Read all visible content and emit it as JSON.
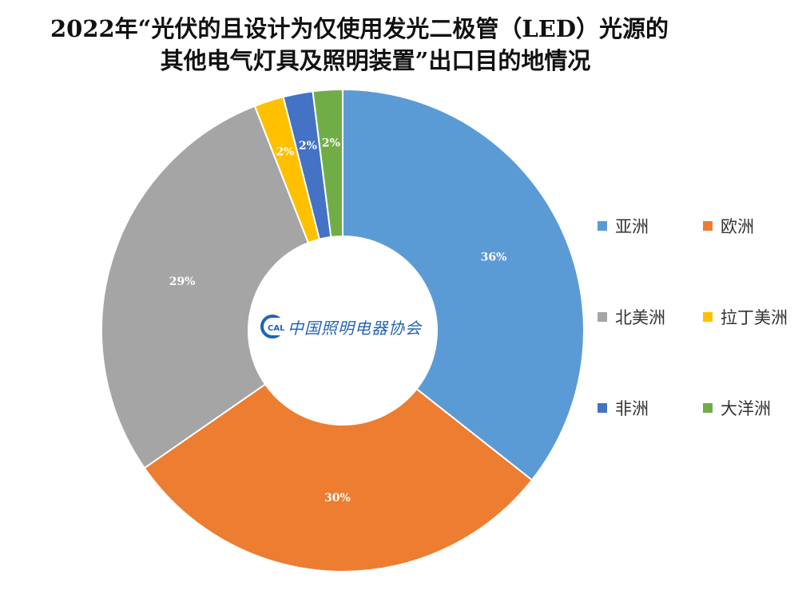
{
  "chart_data": {
    "type": "pie",
    "subtype": "donut",
    "title": "2022年“光伏的且设计为仅使用发光二极管（LED）光源的其他电气灯具及照明装置”出口目的地情况",
    "title_lines": [
      "2022年“光伏的且设计为仅使用发光二极管（LED）光源的",
      "其他电气灯具及照明装置”出口目的地情况"
    ],
    "categories": [
      "亚洲",
      "欧洲",
      "北美洲",
      "拉丁美洲",
      "非洲",
      "大洋洲"
    ],
    "values": [
      36,
      30,
      29,
      2,
      2,
      2
    ],
    "labels": [
      "36%",
      "30%",
      "29%",
      "2%",
      "2%",
      "2%"
    ],
    "colors": [
      "#5b9bd5",
      "#ed7d31",
      "#a5a5a5",
      "#ffc000",
      "#4472c4",
      "#70ad47"
    ],
    "unit": "%",
    "legend_position": "right"
  },
  "logo": {
    "icon": "cali-logo-icon",
    "mark_text": "CALI",
    "text": "中国照明电器协会"
  }
}
